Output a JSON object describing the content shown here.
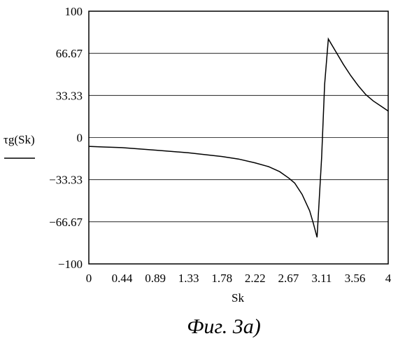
{
  "chart_data": {
    "type": "line",
    "title": "",
    "xlabel": "Sk",
    "ylabel": "τg(Sk)",
    "xlim": [
      0,
      4
    ],
    "ylim": [
      -100,
      100
    ],
    "x_ticks": [
      "0",
      "0.44",
      "0.89",
      "1.33",
      "1.78",
      "2.22",
      "2.67",
      "3.11",
      "3.56",
      "4"
    ],
    "y_ticks": [
      "100",
      "66.67",
      "33.33",
      "0",
      "−33.33",
      "−66.67",
      "−100"
    ],
    "grid": true,
    "series": [
      {
        "x": [
          0,
          0.2,
          0.44,
          0.89,
          1.33,
          1.78,
          2.0,
          2.22,
          2.4,
          2.55,
          2.67,
          2.75,
          2.85,
          2.95,
          3.0,
          3.05,
          3.11,
          3.15,
          3.2,
          3.3,
          3.4,
          3.5,
          3.6,
          3.7,
          3.8,
          3.9,
          4.0
        ],
        "y": [
          -7,
          -7.5,
          -8,
          -10,
          -12,
          -15,
          -17,
          -20,
          -23,
          -27,
          -32,
          -36,
          -45,
          -58,
          -68,
          -79,
          -16,
          42,
          78,
          68,
          58,
          49,
          41,
          34,
          29,
          25,
          21
        ]
      }
    ]
  },
  "caption": "Фиг. 3а)"
}
